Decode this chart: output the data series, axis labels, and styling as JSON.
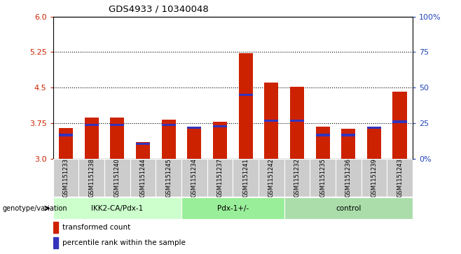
{
  "title": "GDS4933 / 10340048",
  "samples": [
    "GSM1151233",
    "GSM1151238",
    "GSM1151240",
    "GSM1151244",
    "GSM1151245",
    "GSM1151234",
    "GSM1151237",
    "GSM1151241",
    "GSM1151242",
    "GSM1151232",
    "GSM1151235",
    "GSM1151236",
    "GSM1151239",
    "GSM1151243"
  ],
  "bar_tops": [
    3.65,
    3.87,
    3.87,
    3.35,
    3.82,
    3.68,
    3.78,
    5.22,
    4.6,
    4.52,
    3.68,
    3.63,
    3.68,
    4.42
  ],
  "blue_marks": [
    3.5,
    3.72,
    3.72,
    3.32,
    3.72,
    3.65,
    3.68,
    4.35,
    3.8,
    3.8,
    3.5,
    3.5,
    3.65,
    3.78
  ],
  "bar_base": 3.0,
  "ylim": [
    3.0,
    6.0
  ],
  "ylim_right": [
    0,
    100
  ],
  "yticks_left": [
    3.0,
    3.75,
    4.5,
    5.25,
    6.0
  ],
  "yticks_right": [
    0,
    25,
    50,
    75,
    100
  ],
  "dotted_lines": [
    3.75,
    4.5,
    5.25
  ],
  "bar_color": "#cc2200",
  "blue_color": "#3333bb",
  "plot_bg": "#ffffff",
  "tick_bg": "#cccccc",
  "group_data": [
    {
      "label": "IKK2-CA/Pdx-1",
      "start": 0,
      "end": 5,
      "color": "#ccffcc"
    },
    {
      "label": "Pdx-1+/-",
      "start": 5,
      "end": 9,
      "color": "#99ee99"
    },
    {
      "label": "control",
      "start": 9,
      "end": 14,
      "color": "#aaddaa"
    }
  ],
  "legend_items": [
    "transformed count",
    "percentile rank within the sample"
  ],
  "legend_colors": [
    "#cc2200",
    "#3333bb"
  ],
  "xlabel_text": "genotype/variation"
}
